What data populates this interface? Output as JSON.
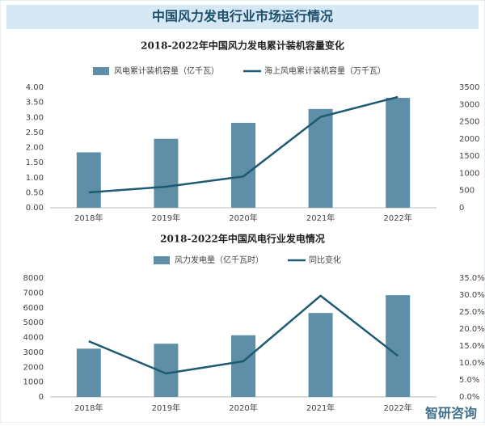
{
  "header": {
    "title": "中国风力发电行业市场运行情况"
  },
  "logo": "智研咨询",
  "chart_data": [
    {
      "type": "combo",
      "title": "2018-2022年中国风力发电累计装机容量变化",
      "categories": [
        "2018年",
        "2019年",
        "2020年",
        "2021年",
        "2022年"
      ],
      "series": [
        {
          "name": "风电累计装机容量（亿千瓦）",
          "type": "bar",
          "color": "#5f8fa6",
          "axis": "y",
          "values": [
            1.84,
            2.29,
            2.82,
            3.28,
            3.65
          ]
        },
        {
          "name": "海上风电累计装机容量（万千瓦）",
          "type": "line",
          "color": "#1d5a73",
          "axis": "y2",
          "values": [
            445,
            610,
            910,
            2640,
            3220
          ]
        }
      ],
      "ylim": [
        0,
        4
      ],
      "yticks": [
        {
          "value": 0,
          "label": "0.00"
        },
        {
          "value": 0.5,
          "label": "0.50"
        },
        {
          "value": 1,
          "label": "1.00"
        },
        {
          "value": 1.5,
          "label": "1.50"
        },
        {
          "value": 2,
          "label": "2.00"
        },
        {
          "value": 2.5,
          "label": "2.50"
        },
        {
          "value": 3,
          "label": "3.00"
        },
        {
          "value": 3.5,
          "label": "3.50"
        },
        {
          "value": 4,
          "label": "4.00"
        }
      ],
      "y2lim": [
        0,
        3500
      ],
      "y2ticks": [
        0,
        500,
        1000,
        1500,
        2000,
        2500,
        3000,
        3500
      ]
    },
    {
      "type": "combo",
      "title": "2018-2022年中国风电行业发电情况",
      "categories": [
        "2018年",
        "2019年",
        "2020年",
        "2021年",
        "2022年"
      ],
      "series": [
        {
          "name": "风力发电量（亿千瓦时）",
          "type": "bar",
          "color": "#5f8fa6",
          "axis": "y",
          "values": [
            3250,
            3580,
            4150,
            5650,
            6850
          ]
        },
        {
          "name": "同比变化",
          "type": "line",
          "color": "#1d5a73",
          "axis": "y2",
          "values": [
            16.4,
            6.9,
            10.5,
            29.8,
            12.1
          ]
        }
      ],
      "ylim": [
        0,
        8000
      ],
      "yticks": [
        0,
        1000,
        2000,
        3000,
        4000,
        5000,
        6000,
        7000,
        8000
      ],
      "y2lim": [
        0,
        35
      ],
      "y2ticks": [
        {
          "value": 0,
          "label": "0.0%"
        },
        {
          "value": 5,
          "label": "5.0%"
        },
        {
          "value": 10,
          "label": "10.0%"
        },
        {
          "value": 15,
          "label": "15.0%"
        },
        {
          "value": 20,
          "label": "20.0%"
        },
        {
          "value": 25,
          "label": "25.0%"
        },
        {
          "value": 30,
          "label": "30.0%"
        },
        {
          "value": 35,
          "label": "35.0%"
        }
      ]
    }
  ]
}
